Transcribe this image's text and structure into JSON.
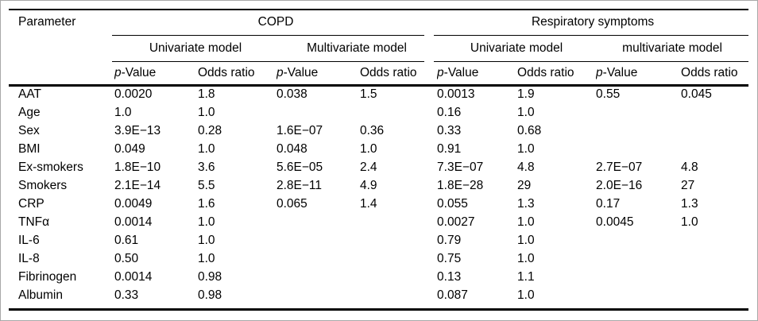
{
  "table": {
    "title_col": "Parameter",
    "groups": [
      {
        "label": "COPD",
        "models": [
          "Univariate model",
          "Multivariate model"
        ]
      },
      {
        "label": "Respiratory symptoms",
        "models": [
          "Univariate model",
          "multivariate model"
        ]
      }
    ],
    "value_headers": {
      "p_italic": "p",
      "p_rest": "-Value",
      "odds": "Odds ratio"
    },
    "rows": [
      {
        "param": "AAT",
        "values": [
          "0.0020",
          "1.8",
          "0.038",
          "1.5",
          "0.0013",
          "1.9",
          "0.55",
          "0.045"
        ]
      },
      {
        "param": "Age",
        "values": [
          "1.0",
          "1.0",
          "",
          "",
          "0.16",
          "1.0",
          "",
          ""
        ]
      },
      {
        "param": "Sex",
        "values": [
          "3.9E−13",
          "0.28",
          "1.6E−07",
          "0.36",
          "0.33",
          "0.68",
          "",
          ""
        ]
      },
      {
        "param": "BMI",
        "values": [
          "0.049",
          "1.0",
          "0.048",
          "1.0",
          "0.91",
          "1.0",
          "",
          ""
        ]
      },
      {
        "param": "Ex-smokers",
        "values": [
          "1.8E−10",
          "3.6",
          "5.6E−05",
          "2.4",
          "7.3E−07",
          "4.8",
          "2.7E−07",
          "4.8"
        ]
      },
      {
        "param": "Smokers",
        "values": [
          "2.1E−14",
          "5.5",
          "2.8E−11",
          "4.9",
          "1.8E−28",
          "29",
          "2.0E−16",
          "27"
        ]
      },
      {
        "param": "CRP",
        "values": [
          "0.0049",
          "1.6",
          "0.065",
          "1.4",
          "0.055",
          "1.3",
          "0.17",
          "1.3"
        ]
      },
      {
        "param": "TNFα",
        "values": [
          "0.0014",
          "1.0",
          "",
          "",
          "0.0027",
          "1.0",
          "0.0045",
          "1.0"
        ]
      },
      {
        "param": "IL-6",
        "values": [
          "0.61",
          "1.0",
          "",
          "",
          "0.79",
          "1.0",
          "",
          ""
        ]
      },
      {
        "param": "IL-8",
        "values": [
          "0.50",
          "1.0",
          "",
          "",
          "0.75",
          "1.0",
          "",
          ""
        ]
      },
      {
        "param": "Fibrinogen",
        "values": [
          "0.0014",
          "0.98",
          "",
          "",
          "0.13",
          "1.1",
          "",
          ""
        ]
      },
      {
        "param": "Albumin",
        "values": [
          "0.33",
          "0.98",
          "",
          "",
          "0.087",
          "1.0",
          "",
          ""
        ]
      }
    ]
  }
}
